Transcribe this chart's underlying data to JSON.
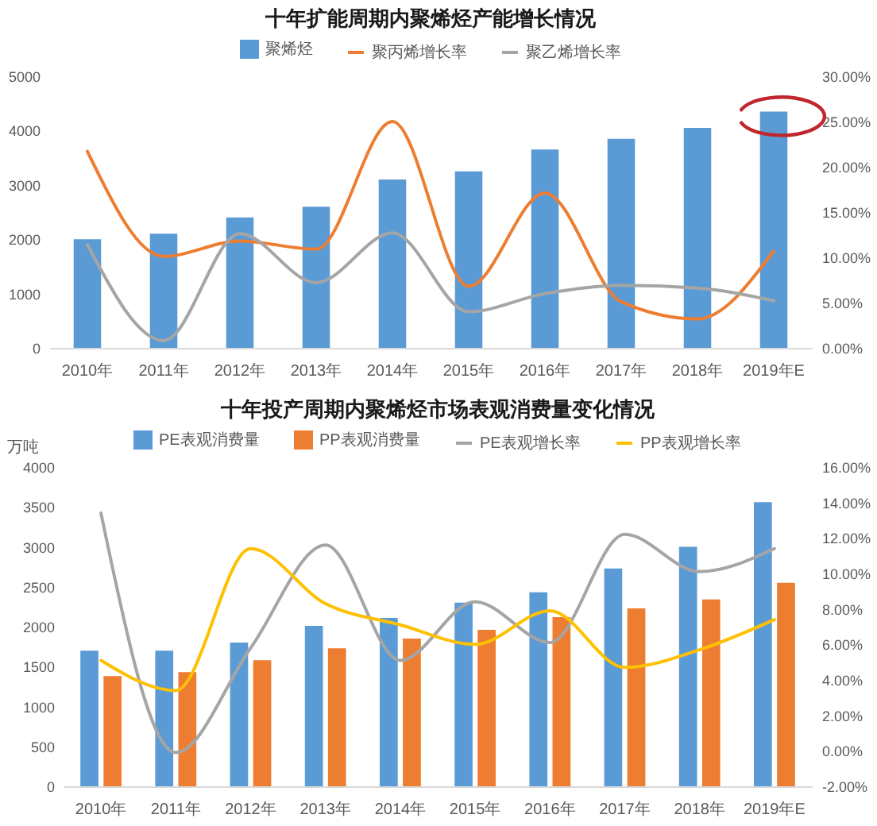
{
  "chart_data": [
    {
      "type": "bar",
      "title": "十年扩能周期内聚烯烃产能增长情况",
      "categories": [
        "2010年",
        "2011年",
        "2012年",
        "2013年",
        "2014年",
        "2015年",
        "2016年",
        "2017年",
        "2018年",
        "2019年E"
      ],
      "series": [
        {
          "name": "聚烯烃",
          "color": "#5b9bd5",
          "values": [
            2000,
            2100,
            2400,
            2600,
            3100,
            3250,
            3650,
            3850,
            4050,
            4350
          ]
        },
        {
          "name": "聚丙烯增长率",
          "type": "line",
          "axis": "y2",
          "color": "#ed7d31",
          "values": [
            21.7,
            10.1,
            11.8,
            10.9,
            25.0,
            6.8,
            17.1,
            5.1,
            3.2,
            10.7
          ]
        },
        {
          "name": "聚乙烯增长率",
          "type": "line",
          "axis": "y2",
          "color": "#a5a5a5",
          "values": [
            11.4,
            0.8,
            12.6,
            7.2,
            12.7,
            4.0,
            6.0,
            6.9,
            6.6,
            5.2
          ]
        }
      ],
      "ylim": [
        0,
        5000
      ],
      "yticks": [
        0,
        1000,
        2000,
        3000,
        4000,
        5000
      ],
      "y2lim": [
        0,
        30
      ],
      "y2ticks": [
        {
          "value": 0,
          "label": "0.00%"
        },
        {
          "value": 5,
          "label": "5.00%"
        },
        {
          "value": 10,
          "label": "10.00%"
        },
        {
          "value": 15,
          "label": "15.00%"
        },
        {
          "value": 20,
          "label": "20.00%"
        },
        {
          "value": 25,
          "label": "25.00%"
        },
        {
          "value": 30,
          "label": "30.00%"
        }
      ],
      "legend": "top"
    },
    {
      "type": "bar",
      "title": "十年投产周期内聚烯烃市场表观消费量变化情况",
      "ylabel": "万吨",
      "categories": [
        "2010年",
        "2011年",
        "2012年",
        "2013年",
        "2014年",
        "2015年",
        "2016年",
        "2017年",
        "2018年",
        "2019年E"
      ],
      "series": [
        {
          "name": "PE表观消费量",
          "color": "#5b9bd5",
          "values": [
            1700,
            1700,
            1800,
            2010,
            2110,
            2300,
            2430,
            2730,
            3000,
            3560
          ]
        },
        {
          "name": "PP表观消费量",
          "color": "#ed7d31",
          "values": [
            1380,
            1430,
            1580,
            1730,
            1850,
            1960,
            2120,
            2230,
            2340,
            2550
          ]
        },
        {
          "name": "PE表观增长率",
          "type": "line",
          "axis": "y2",
          "color": "#a5a5a5",
          "values": [
            13.4,
            -0.1,
            5.8,
            11.6,
            5.1,
            8.4,
            6.1,
            12.2,
            10.1,
            11.4
          ]
        },
        {
          "name": "PP表观增长率",
          "type": "line",
          "axis": "y2",
          "color": "#ffc000",
          "values": [
            5.1,
            3.4,
            11.4,
            8.3,
            7.1,
            6.0,
            7.9,
            4.7,
            5.7,
            7.4
          ]
        }
      ],
      "ylim": [
        0,
        4000
      ],
      "yticks": [
        0,
        500,
        1000,
        1500,
        2000,
        2500,
        3000,
        3500,
        4000
      ],
      "y2lim": [
        -2,
        16
      ],
      "y2ticks": [
        {
          "value": -2,
          "label": "-2.00%"
        },
        {
          "value": 0,
          "label": "0.00%"
        },
        {
          "value": 2,
          "label": "2.00%"
        },
        {
          "value": 4,
          "label": "4.00%"
        },
        {
          "value": 6,
          "label": "6.00%"
        },
        {
          "value": 8,
          "label": "8.00%"
        },
        {
          "value": 10,
          "label": "10.00%"
        },
        {
          "value": 12,
          "label": "12.00%"
        },
        {
          "value": 14,
          "label": "14.00%"
        },
        {
          "value": 16,
          "label": "16.00%"
        }
      ],
      "legend": "top"
    }
  ]
}
